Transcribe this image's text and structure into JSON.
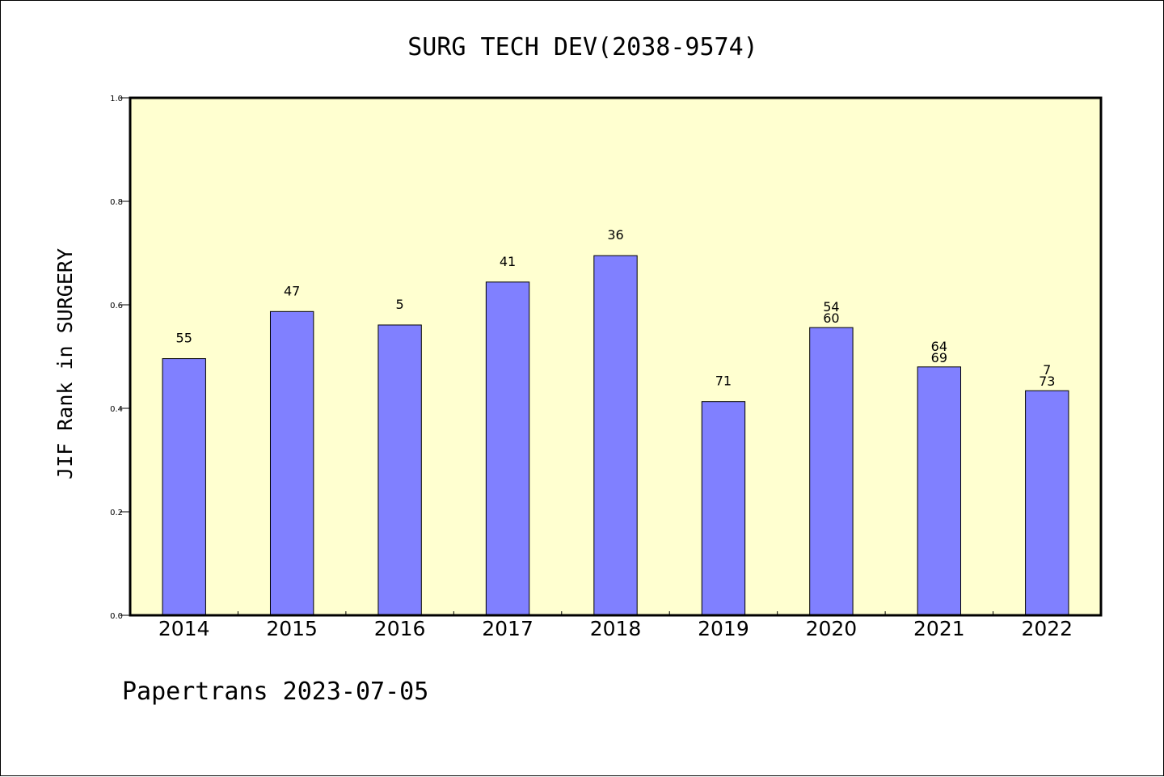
{
  "chart_data": {
    "type": "bar",
    "title": "SURG TECH DEV(2038-9574)",
    "ylabel": "JIF Rank in SURGERY",
    "xlabel": "",
    "ylim": [
      0,
      1.0
    ],
    "yticks": [
      "0.0",
      "0.2",
      "0.4",
      "0.6",
      "0.8",
      "1.0"
    ],
    "categories": [
      "2014",
      "2015",
      "2016",
      "2017",
      "2018",
      "2019",
      "2020",
      "2021",
      "2022"
    ],
    "values": [
      0.496,
      0.587,
      0.561,
      0.644,
      0.695,
      0.413,
      0.556,
      0.48,
      0.434
    ],
    "data_labels": [
      [
        "55"
      ],
      [
        "47"
      ],
      [
        "5"
      ],
      [
        "41"
      ],
      [
        "36"
      ],
      [
        "71"
      ],
      [
        "54",
        "60"
      ],
      [
        "64",
        "69"
      ],
      [
        "7",
        "73"
      ]
    ],
    "grid": false,
    "bar_color": "#8080ff",
    "plot_background": "#ffffd0"
  },
  "footer": "Papertrans 2023-07-05"
}
